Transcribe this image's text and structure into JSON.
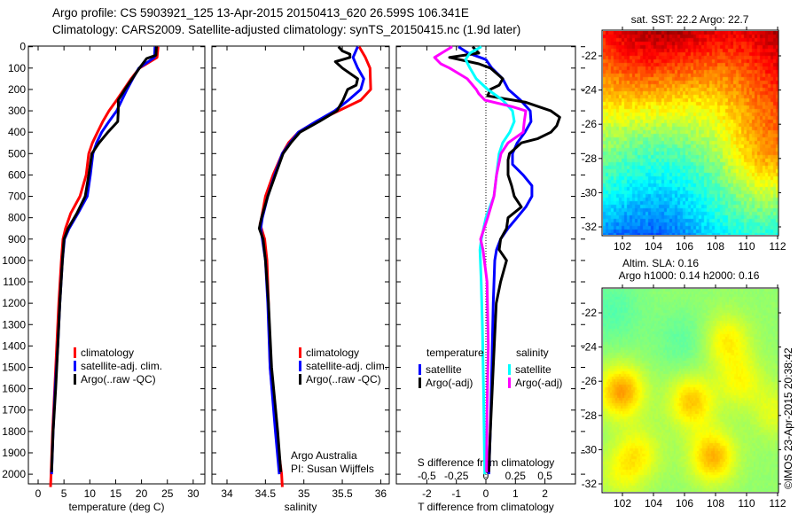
{
  "header": {
    "line1": "Argo profile: CS 5903921_125 13-Apr-2015 20150413_620 26.599S 106.341E",
    "line2": "Climatology: CARS2009. Satellite-adjusted climatology: synTS_20150415.nc (1.9d later)"
  },
  "colors": {
    "climatology": "#ff0000",
    "satellite": "#0000ff",
    "argo": "#000000",
    "sal_satellite": "#00ffff",
    "sal_argo": "#ff00ff"
  },
  "credits": {
    "line1": "Argo Australia",
    "line2": "PI: Susan Wijffels",
    "stamp": "©IMOS 23-Apr-2015 20:38:42"
  },
  "chart_data": [
    {
      "type": "line",
      "id": "temperature",
      "xlabel": "temperature (deg C)",
      "ylabel": "depth",
      "xlim": [
        -2,
        32
      ],
      "ylim": [
        2060,
        0
      ],
      "xticks": [
        0,
        5,
        10,
        15,
        20,
        25,
        30
      ],
      "yticks": [
        0,
        100,
        200,
        300,
        400,
        500,
        600,
        700,
        800,
        900,
        1000,
        1100,
        1200,
        1300,
        1400,
        1500,
        1600,
        1700,
        1800,
        1900,
        2000
      ],
      "legend": [
        "climatology",
        "satellite-adj. clim.",
        "Argo(..raw -QC)"
      ],
      "series": [
        {
          "name": "climatology",
          "color": "climatology",
          "depth": [
            0,
            50,
            100,
            150,
            200,
            250,
            300,
            350,
            400,
            450,
            500,
            600,
            700,
            780,
            850,
            900,
            1000,
            1200,
            1400,
            1600,
            1800,
            2000,
            2060
          ],
          "values": [
            23.2,
            23.0,
            19.6,
            18.0,
            16.6,
            15.2,
            13.7,
            12.5,
            11.5,
            10.5,
            9.8,
            9.3,
            8.1,
            6.3,
            5.3,
            4.8,
            4.5,
            4.0,
            3.6,
            3.2,
            2.8,
            2.5,
            2.4
          ]
        },
        {
          "name": "satellite-adj. clim.",
          "color": "satellite",
          "depth": [
            0,
            50,
            100,
            150,
            200,
            250,
            300,
            350,
            400,
            450,
            500,
            600,
            700,
            780,
            850,
            900,
            1000,
            1200,
            1400,
            1600,
            1800,
            2000
          ],
          "values": [
            22.6,
            22.5,
            19.5,
            18.3,
            17.2,
            16.2,
            15.2,
            13.7,
            12.3,
            11.3,
            10.6,
            10.1,
            9.5,
            7.7,
            6.0,
            5.1,
            4.7,
            4.2,
            3.8,
            3.3,
            2.9,
            2.6
          ]
        },
        {
          "name": "Argo(..raw -QC)",
          "color": "argo",
          "depth": [
            0,
            40,
            55,
            100,
            150,
            200,
            250,
            300,
            350,
            400,
            450,
            500,
            600,
            700,
            780,
            850,
            900,
            1000,
            1200,
            1400,
            1600,
            1800,
            1990
          ],
          "values": [
            22.9,
            22.8,
            21.0,
            19.6,
            18.2,
            16.8,
            15.5,
            15.5,
            15.4,
            13.5,
            11.8,
            10.4,
            9.8,
            9.1,
            7.5,
            5.8,
            5.0,
            4.7,
            4.2,
            3.8,
            3.4,
            2.9,
            2.6
          ]
        }
      ]
    },
    {
      "type": "line",
      "id": "salinity",
      "xlabel": "salinity",
      "ylabel": "depth",
      "xlim": [
        33.81,
        36.1
      ],
      "ylim": [
        2060,
        0
      ],
      "xticks": [
        34,
        34.5,
        35,
        35.5,
        36
      ],
      "legend": [
        "climatology",
        "satellite-adj. clim.",
        "Argo(..raw -QC)"
      ],
      "series": [
        {
          "name": "climatology",
          "color": "climatology",
          "depth": [
            0,
            50,
            100,
            200,
            250,
            300,
            350,
            400,
            450,
            500,
            600,
            700,
            800,
            830,
            900,
            1000,
            1200,
            1500,
            1800,
            2000,
            2060
          ],
          "values": [
            35.72,
            35.8,
            35.86,
            35.87,
            35.74,
            35.45,
            35.16,
            34.93,
            34.8,
            34.72,
            34.6,
            34.5,
            34.45,
            34.43,
            34.49,
            34.52,
            34.54,
            34.56,
            34.64,
            34.71,
            34.72
          ]
        },
        {
          "name": "satellite-adj. clim.",
          "color": "satellite",
          "depth": [
            0,
            50,
            100,
            150,
            200,
            250,
            300,
            350,
            400,
            450,
            500,
            600,
            700,
            800,
            850,
            900,
            1000,
            1200,
            1500,
            1800,
            2000
          ],
          "values": [
            35.7,
            35.64,
            35.7,
            35.78,
            35.74,
            35.58,
            35.4,
            35.16,
            34.93,
            34.82,
            34.72,
            34.62,
            34.53,
            34.46,
            34.44,
            34.46,
            34.5,
            34.53,
            34.56,
            34.63,
            34.68
          ]
        },
        {
          "name": "Argo(..raw -QC)",
          "color": "argo",
          "depth": [
            0,
            20,
            35,
            50,
            70,
            100,
            150,
            180,
            200,
            250,
            300,
            350,
            400,
            450,
            500,
            600,
            700,
            800,
            850,
            900,
            1000,
            1200,
            1500,
            1800,
            1990
          ],
          "values": [
            35.45,
            35.5,
            35.6,
            35.6,
            35.41,
            35.5,
            35.7,
            35.68,
            35.57,
            35.51,
            35.43,
            35.2,
            34.95,
            34.83,
            34.73,
            34.63,
            34.53,
            34.45,
            34.42,
            34.47,
            34.5,
            34.54,
            34.58,
            34.66,
            34.7
          ]
        }
      ]
    },
    {
      "type": "line",
      "id": "difference",
      "xlabel": "T difference from climatology",
      "x2label": "S difference from climatology",
      "xlim": [
        -3,
        3.05
      ],
      "ylim": [
        2060,
        0
      ],
      "xticks": [
        -2,
        -1,
        0,
        1,
        2
      ],
      "xtick_labels": [
        "-2",
        "-1",
        "0",
        "1",
        "2"
      ],
      "x2ticks": [
        -0.5,
        -0.25,
        0,
        0.25,
        0.5
      ],
      "x2tick_labels": [
        "-0.5",
        "-0.25",
        "0",
        "0.25",
        "0.5"
      ],
      "legend_groups": [
        "temperature",
        "salinity"
      ],
      "legend": [
        "satellite",
        "Argo(-adj)",
        "satellite",
        "Argo(-adj)"
      ],
      "series": [
        {
          "name": "T satellite",
          "units": "T",
          "color": "satellite",
          "depth": [
            0,
            30,
            60,
            100,
            150,
            200,
            250,
            300,
            350,
            400,
            450,
            500,
            550,
            600,
            650,
            700,
            750,
            800,
            850,
            900,
            950,
            1000,
            1200,
            1500,
            1800,
            2000
          ],
          "values": [
            -0.93,
            -0.6,
            0,
            0.2,
            0.57,
            0.76,
            1.17,
            1.5,
            1.53,
            1.32,
            1.06,
            0.9,
            0.9,
            1.26,
            1.56,
            1.56,
            1.35,
            1.05,
            0.75,
            0.5,
            0.36,
            0.3,
            0.25,
            0.2,
            0.15,
            0.1
          ]
        },
        {
          "name": "T Argo(-adj)",
          "units": "T",
          "color": "argo",
          "depth": [
            0,
            30,
            50,
            80,
            100,
            150,
            180,
            200,
            230,
            260,
            300,
            330,
            370,
            400,
            430,
            450,
            480,
            500,
            530,
            600,
            650,
            700,
            750,
            800,
            850,
            900,
            950,
            1000,
            1100,
            1200,
            1500,
            1800,
            1990
          ],
          "values": [
            -0.45,
            -0.24,
            -1.23,
            -0.24,
            0.15,
            0.57,
            0.45,
            0.15,
            0.06,
            1.35,
            2.2,
            2.5,
            2.4,
            2.2,
            1.76,
            1.2,
            0.96,
            0.8,
            0.75,
            0.75,
            0.87,
            0.96,
            1.2,
            0.75,
            0.7,
            0.5,
            0.45,
            0.7,
            0.5,
            0.35,
            0.25,
            0.15,
            0.1
          ]
        },
        {
          "name": "S satellite",
          "units": "S",
          "color": "sal_satellite",
          "depth": [
            0,
            30,
            60,
            100,
            150,
            200,
            250,
            300,
            350,
            400,
            450,
            500,
            600,
            700,
            800,
            900,
            950,
            1100,
            1300,
            1600,
            2000
          ],
          "values": [
            -0.038,
            -0.135,
            -0.172,
            -0.135,
            -0.082,
            0.015,
            0.142,
            0.225,
            0.24,
            0.202,
            0.142,
            0.112,
            0.09,
            0.068,
            0,
            -0.038,
            -0.05,
            -0.04,
            -0.03,
            -0.02,
            -0.01
          ]
        },
        {
          "name": "S Argo(-adj)",
          "units": "S",
          "color": "sal_argo",
          "depth": [
            0,
            30,
            50,
            80,
            100,
            150,
            200,
            220,
            250,
            280,
            300,
            350,
            400,
            450,
            500,
            600,
            700,
            800,
            900,
            950,
            1100,
            1400,
            1700,
            1990
          ],
          "values": [
            -0.285,
            -0.375,
            -0.435,
            -0.382,
            -0.308,
            -0.158,
            -0.082,
            -0.06,
            -0.008,
            0.218,
            0.338,
            0.325,
            0.315,
            0.188,
            0.128,
            0.09,
            0.068,
            0.015,
            -0.045,
            -0.025,
            0.01,
            0.02,
            0.01,
            0.005
          ]
        }
      ]
    },
    {
      "type": "heatmap",
      "id": "sst-map",
      "title": "sat. SST: 22.2 Argo: 22.7",
      "xlim": [
        100.8,
        112
      ],
      "ylim": [
        -32.5,
        -20.6
      ],
      "xticks": [
        102,
        104,
        106,
        108,
        110,
        112
      ],
      "yticks": [
        -22,
        -24,
        -26,
        -28,
        -30,
        -32
      ]
    },
    {
      "type": "heatmap",
      "id": "sla-map",
      "title": "Altim. SLA: 0.16",
      "subtitle": "Argo h1000: 0.14 h2000: 0.16",
      "xlim": [
        100.8,
        112
      ],
      "ylim": [
        -32.5,
        -20.6
      ],
      "xticks": [
        102,
        104,
        106,
        108,
        110,
        112
      ],
      "yticks": [
        -22,
        -24,
        -26,
        -28,
        -30,
        -32
      ]
    }
  ]
}
